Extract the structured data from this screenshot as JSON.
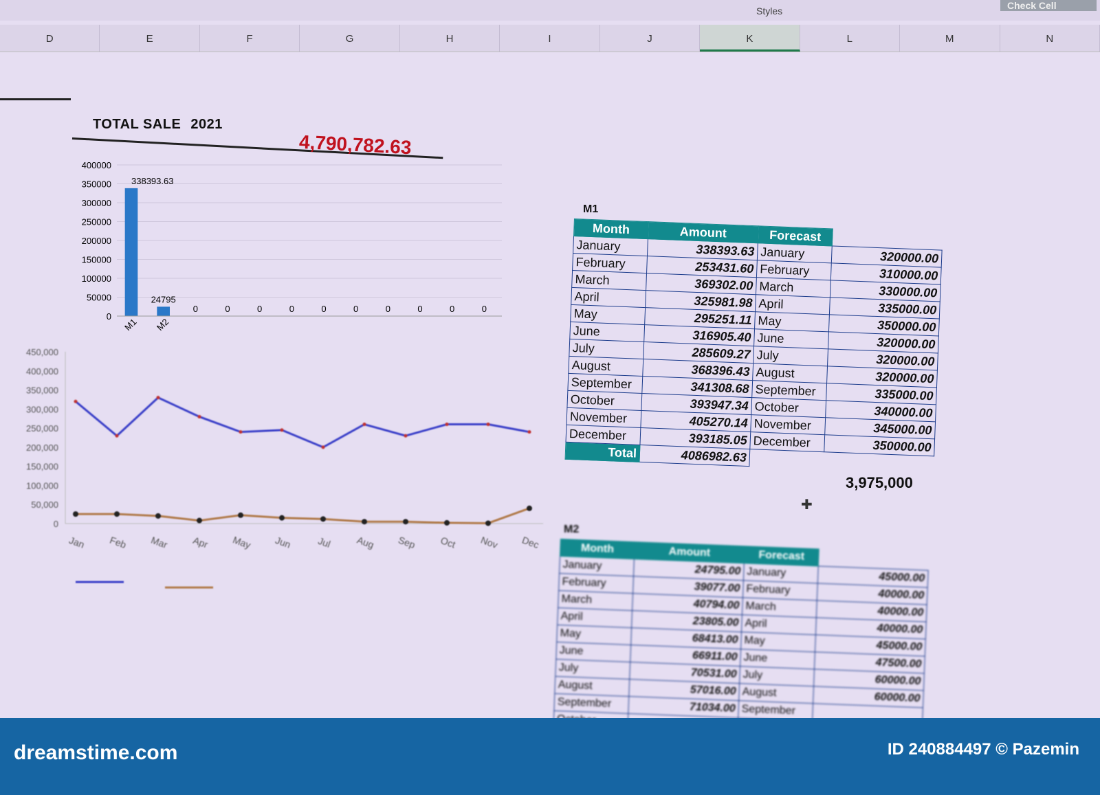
{
  "ribbon": {
    "styles_label": "Styles",
    "check_cell_label": "Check Cell"
  },
  "columns": [
    "D",
    "E",
    "F",
    "G",
    "H",
    "I",
    "J",
    "K",
    "L",
    "M",
    "N"
  ],
  "selected_column": "K",
  "header": {
    "title": "TOTAL SALE",
    "year": "2021",
    "grand_total": "4,790,782.63"
  },
  "chart_data": [
    {
      "type": "bar",
      "categories": [
        "M1",
        "M2",
        "",
        "",
        "",
        "",
        "",
        "",
        "",
        "",
        "",
        ""
      ],
      "values": [
        338393.63,
        24795,
        0,
        0,
        0,
        0,
        0,
        0,
        0,
        0,
        0,
        0
      ],
      "data_labels": [
        "338393.63",
        "24795",
        "0",
        "0",
        "0",
        "0",
        "0",
        "0",
        "0",
        "0",
        "0",
        "0"
      ],
      "yticks": [
        "0",
        "50000",
        "100000",
        "150000",
        "200000",
        "250000",
        "300000",
        "350000",
        "400000"
      ],
      "ylim": [
        0,
        400000
      ],
      "grid": true,
      "color": "#2a78c8"
    },
    {
      "type": "line",
      "categories": [
        "Jan",
        "Feb",
        "Mar",
        "Apr",
        "May",
        "Jun",
        "Jul",
        "Aug",
        "Sep",
        "Oct",
        "Nov",
        "Dec"
      ],
      "yticks": [
        "0",
        "50,000",
        "100,000",
        "150,000",
        "200,000",
        "250,000",
        "300,000",
        "350,000",
        "400,000",
        "450,000"
      ],
      "ylim": [
        0,
        450000
      ],
      "grid": false,
      "series": [
        {
          "color": "#3a3fc8",
          "values": [
            320000,
            230000,
            330000,
            280000,
            240000,
            245000,
            200000,
            260000,
            230000,
            260000,
            260000,
            240000
          ]
        },
        {
          "color": "#b07a4a",
          "values": [
            25000,
            25000,
            20000,
            8000,
            22000,
            15000,
            12000,
            5000,
            5000,
            2000,
            1000,
            40000
          ]
        }
      ]
    }
  ],
  "m1": {
    "label": "M1",
    "headers": [
      "Month",
      "Amount",
      "Forecast"
    ],
    "months": [
      "January",
      "February",
      "March",
      "April",
      "May",
      "June",
      "July",
      "August",
      "September",
      "October",
      "November",
      "December"
    ],
    "amounts": [
      "338393.63",
      "253431.60",
      "369302.00",
      "325981.98",
      "295251.11",
      "316905.40",
      "285609.27",
      "368396.43",
      "341308.68",
      "393947.34",
      "405270.14",
      "393185.05"
    ],
    "forecast_values": [
      "320000.00",
      "310000.00",
      "330000.00",
      "335000.00",
      "350000.00",
      "320000.00",
      "320000.00",
      "320000.00",
      "335000.00",
      "340000.00",
      "345000.00",
      "350000.00"
    ],
    "total_label": "Total",
    "total": "4086982.63",
    "forecast_total": "3,975,000"
  },
  "m2": {
    "label": "M2",
    "headers": [
      "Month",
      "Amount",
      "Forecast"
    ],
    "months": [
      "January",
      "February",
      "March",
      "April",
      "May",
      "June",
      "July",
      "August",
      "September",
      "October"
    ],
    "amounts": [
      "24795.00",
      "39077.00",
      "40794.00",
      "23805.00",
      "68413.00",
      "66911.00",
      "70531.00",
      "57016.00",
      "71034.00",
      ""
    ],
    "forecast_months": [
      "January",
      "February",
      "March",
      "April",
      "May",
      "June",
      "July",
      "August",
      "September",
      ""
    ],
    "forecast_values": [
      "45000.00",
      "40000.00",
      "40000.00",
      "40000.00",
      "45000.00",
      "47500.00",
      "60000.00",
      "60000.00",
      "",
      ""
    ]
  },
  "footer": {
    "logo": "dreamstime.com",
    "credit": "ID 240884497 © Pazemin"
  }
}
